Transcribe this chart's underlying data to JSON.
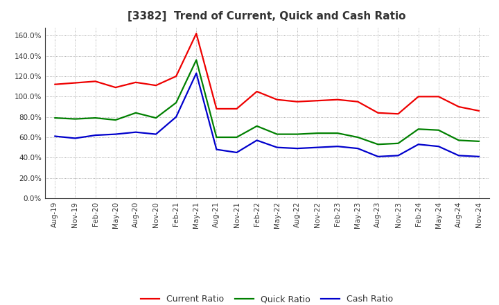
{
  "title": "[3382]  Trend of Current, Quick and Cash Ratio",
  "x_labels": [
    "Aug-19",
    "Nov-19",
    "Feb-20",
    "May-20",
    "Aug-20",
    "Nov-20",
    "Feb-21",
    "May-21",
    "Aug-21",
    "Nov-21",
    "Feb-22",
    "May-22",
    "Aug-22",
    "Nov-22",
    "Feb-23",
    "May-23",
    "Aug-23",
    "Nov-23",
    "Feb-24",
    "May-24",
    "Aug-24",
    "Nov-24"
  ],
  "current_ratio": [
    112.0,
    113.5,
    115.0,
    109.0,
    114.0,
    111.0,
    120.0,
    162.0,
    88.0,
    88.0,
    105.0,
    97.0,
    95.0,
    96.0,
    97.0,
    95.0,
    84.0,
    83.0,
    100.0,
    100.0,
    90.0,
    86.0
  ],
  "quick_ratio": [
    79.0,
    78.0,
    79.0,
    77.0,
    84.0,
    79.0,
    94.0,
    136.0,
    60.0,
    60.0,
    71.0,
    63.0,
    63.0,
    64.0,
    64.0,
    60.0,
    53.0,
    54.0,
    68.0,
    67.0,
    57.0,
    56.0
  ],
  "cash_ratio": [
    61.0,
    59.0,
    62.0,
    63.0,
    65.0,
    63.0,
    80.0,
    123.0,
    48.0,
    45.0,
    57.0,
    50.0,
    49.0,
    50.0,
    51.0,
    49.0,
    41.0,
    42.0,
    53.0,
    51.0,
    42.0,
    41.0
  ],
  "current_color": "#EE0000",
  "quick_color": "#008000",
  "cash_color": "#0000CC",
  "ylim": [
    0,
    168
  ],
  "yticks": [
    0,
    20,
    40,
    60,
    80,
    100,
    120,
    140,
    160
  ],
  "background_color": "#ffffff",
  "grid_color": "#999999",
  "title_color": "#333333",
  "legend_labels": [
    "Current Ratio",
    "Quick Ratio",
    "Cash Ratio"
  ]
}
